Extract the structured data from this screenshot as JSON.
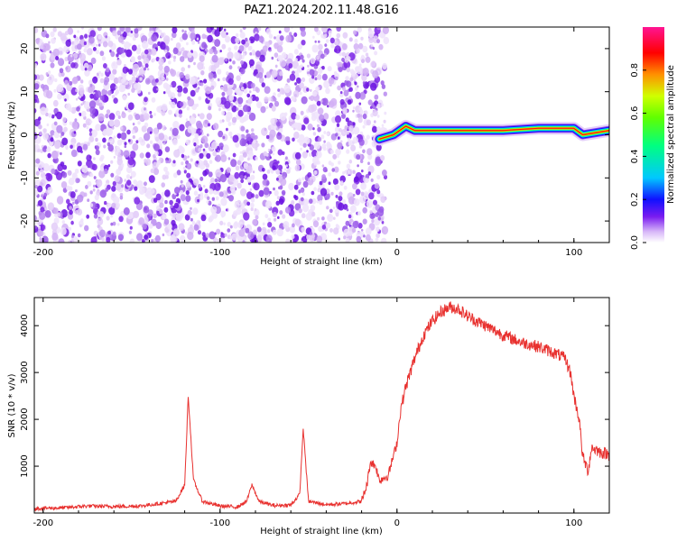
{
  "title": "PAZ1.2024.202.11.48.G16",
  "chart_data": [
    {
      "type": "heatmap",
      "xlabel": "Height of straight line (km)",
      "ylabel": "Frequency (Hz)",
      "xlim": [
        -205,
        120
      ],
      "ylim": [
        -25,
        25
      ],
      "xticks": [
        -200,
        -100,
        0,
        100
      ],
      "yticks": [
        -20,
        -10,
        0,
        10,
        20
      ],
      "colorbar": {
        "label": "Normalized spectral amplitude",
        "range": [
          0.0,
          1.0
        ],
        "ticks": [
          "0.0",
          "0.2",
          "0.4",
          "0.6",
          "0.8"
        ],
        "colormap": [
          "#ffffff",
          "#d8b8f8",
          "#7a1cf0",
          "#1010ff",
          "#00c8ff",
          "#00ff60",
          "#c8ff00",
          "#ff8000",
          "#ff0000",
          "#ff1493"
        ]
      },
      "description_values": {
        "noise_region_km": [
          -205,
          -10
        ],
        "signal_track": [
          {
            "x": -10,
            "y": -1
          },
          {
            "x": -2,
            "y": 0
          },
          {
            "x": 5,
            "y": 2
          },
          {
            "x": 10,
            "y": 1
          },
          {
            "x": 30,
            "y": 1
          },
          {
            "x": 60,
            "y": 1
          },
          {
            "x": 80,
            "y": 1.5
          },
          {
            "x": 100,
            "y": 1.5
          },
          {
            "x": 105,
            "y": 0
          },
          {
            "x": 120,
            "y": 1
          }
        ]
      }
    },
    {
      "type": "line",
      "xlabel": "Height of straight line (km)",
      "ylabel": "SNR (10 * v/v)",
      "xlim": [
        -205,
        120
      ],
      "ylim": [
        0,
        4600
      ],
      "xticks": [
        -200,
        -100,
        0,
        100
      ],
      "yticks": [
        1000,
        2000,
        3000,
        4000
      ],
      "color": "#e8312f",
      "series": [
        {
          "x": [
            -205,
            -190,
            -175,
            -160,
            -145,
            -135,
            -125,
            -120,
            -118,
            -115,
            -110,
            -100,
            -90,
            -85,
            -82,
            -78,
            -70,
            -60,
            -55,
            -53,
            -50,
            -40,
            -30,
            -20,
            -17,
            -15,
            -12,
            -10,
            -5,
            0,
            2,
            5,
            10,
            15,
            20,
            25,
            30,
            35,
            40,
            50,
            60,
            70,
            80,
            90,
            95,
            98,
            100,
            103,
            105,
            108,
            110,
            115,
            120
          ],
          "y": [
            100,
            110,
            150,
            140,
            150,
            200,
            250,
            600,
            2500,
            700,
            250,
            150,
            130,
            250,
            600,
            250,
            160,
            170,
            400,
            1800,
            250,
            180,
            200,
            250,
            600,
            1100,
            1000,
            700,
            800,
            1500,
            2200,
            2700,
            3300,
            3800,
            4100,
            4300,
            4400,
            4350,
            4200,
            4000,
            3800,
            3650,
            3550,
            3400,
            3300,
            3000,
            2500,
            2000,
            1200,
            900,
            1400,
            1300,
            1250
          ]
        }
      ]
    }
  ]
}
